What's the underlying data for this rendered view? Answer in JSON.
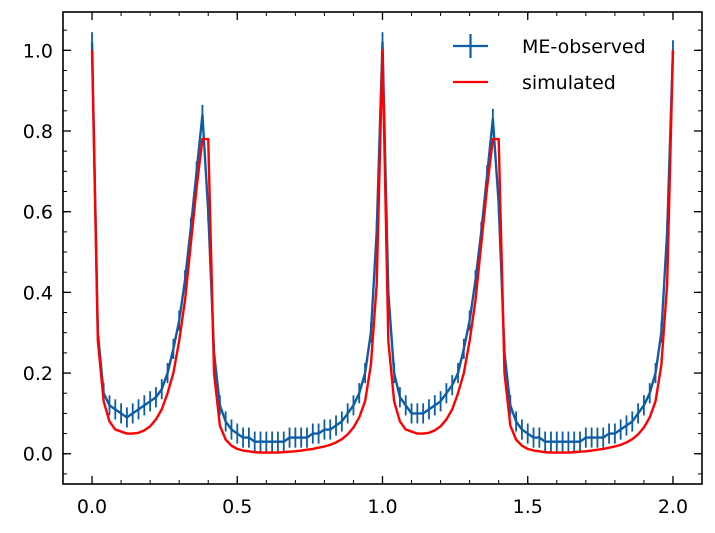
{
  "chart_data": {
    "type": "line",
    "title": "",
    "xlabel": "",
    "ylabel": "",
    "xlim": [
      -0.1,
      2.1
    ],
    "ylim": [
      -0.075,
      1.095
    ],
    "xticks": [
      0.0,
      0.5,
      1.0,
      1.5,
      2.0
    ],
    "xtick_labels": [
      "0.0",
      "0.5",
      "1.0",
      "1.5",
      "2.0"
    ],
    "yticks": [
      0.0,
      0.2,
      0.4,
      0.6,
      0.8,
      1.0
    ],
    "ytick_labels": [
      "0.0",
      "0.2",
      "0.4",
      "0.6",
      "0.8",
      "1.0"
    ],
    "grid": false,
    "legend": {
      "position": "top-right"
    },
    "series": [
      {
        "name": "ME-observed",
        "color": "#0C5DA5",
        "style": "errorbar",
        "x": [
          0.0,
          0.02,
          0.04,
          0.06,
          0.08,
          0.1,
          0.12,
          0.14,
          0.16,
          0.18,
          0.2,
          0.22,
          0.24,
          0.26,
          0.28,
          0.3,
          0.32,
          0.34,
          0.36,
          0.38,
          0.4,
          0.42,
          0.44,
          0.46,
          0.48,
          0.5,
          0.52,
          0.54,
          0.56,
          0.58,
          0.6,
          0.62,
          0.64,
          0.66,
          0.68,
          0.7,
          0.72,
          0.74,
          0.76,
          0.78,
          0.8,
          0.82,
          0.84,
          0.86,
          0.88,
          0.9,
          0.92,
          0.94,
          0.96,
          0.98,
          1.0,
          1.02,
          1.04,
          1.06,
          1.08,
          1.1,
          1.12,
          1.14,
          1.16,
          1.18,
          1.2,
          1.22,
          1.24,
          1.26,
          1.28,
          1.3,
          1.32,
          1.34,
          1.36,
          1.38,
          1.4,
          1.42,
          1.44,
          1.46,
          1.48,
          1.5,
          1.52,
          1.54,
          1.56,
          1.58,
          1.6,
          1.62,
          1.64,
          1.66,
          1.68,
          1.7,
          1.72,
          1.74,
          1.76,
          1.78,
          1.8,
          1.82,
          1.84,
          1.86,
          1.88,
          1.9,
          1.92,
          1.94,
          1.96,
          1.98,
          2.0
        ],
        "y": [
          1.02,
          0.3,
          0.15,
          0.12,
          0.11,
          0.1,
          0.09,
          0.1,
          0.11,
          0.12,
          0.13,
          0.14,
          0.16,
          0.2,
          0.26,
          0.33,
          0.43,
          0.56,
          0.7,
          0.84,
          0.6,
          0.25,
          0.12,
          0.08,
          0.06,
          0.05,
          0.04,
          0.04,
          0.03,
          0.03,
          0.03,
          0.03,
          0.03,
          0.03,
          0.04,
          0.04,
          0.04,
          0.04,
          0.05,
          0.05,
          0.06,
          0.06,
          0.07,
          0.08,
          0.1,
          0.12,
          0.15,
          0.2,
          0.3,
          0.55,
          1.02,
          0.4,
          0.2,
          0.14,
          0.12,
          0.1,
          0.1,
          0.1,
          0.11,
          0.12,
          0.13,
          0.15,
          0.17,
          0.2,
          0.26,
          0.33,
          0.43,
          0.55,
          0.69,
          0.83,
          0.62,
          0.25,
          0.12,
          0.08,
          0.06,
          0.05,
          0.04,
          0.04,
          0.03,
          0.03,
          0.03,
          0.03,
          0.03,
          0.03,
          0.03,
          0.04,
          0.04,
          0.04,
          0.04,
          0.05,
          0.05,
          0.06,
          0.07,
          0.08,
          0.1,
          0.12,
          0.15,
          0.2,
          0.3,
          0.55,
          1.0
        ]
      },
      {
        "name": "simulated",
        "color": "#FF0000",
        "style": "line",
        "x": [
          0.0,
          0.02,
          0.04,
          0.06,
          0.08,
          0.1,
          0.12,
          0.14,
          0.16,
          0.18,
          0.2,
          0.22,
          0.24,
          0.26,
          0.28,
          0.3,
          0.32,
          0.34,
          0.36,
          0.38,
          0.4,
          0.42,
          0.44,
          0.46,
          0.48,
          0.5,
          0.52,
          0.54,
          0.56,
          0.58,
          0.6,
          0.62,
          0.64,
          0.66,
          0.68,
          0.7,
          0.72,
          0.74,
          0.76,
          0.78,
          0.8,
          0.82,
          0.84,
          0.86,
          0.88,
          0.9,
          0.92,
          0.94,
          0.96,
          0.98,
          1.0,
          1.02,
          1.04,
          1.06,
          1.08,
          1.1,
          1.12,
          1.14,
          1.16,
          1.18,
          1.2,
          1.22,
          1.24,
          1.26,
          1.28,
          1.3,
          1.32,
          1.34,
          1.36,
          1.38,
          1.4,
          1.42,
          1.44,
          1.46,
          1.48,
          1.5,
          1.52,
          1.54,
          1.56,
          1.58,
          1.6,
          1.62,
          1.64,
          1.66,
          1.68,
          1.7,
          1.72,
          1.74,
          1.76,
          1.78,
          1.8,
          1.82,
          1.84,
          1.86,
          1.88,
          1.9,
          1.92,
          1.94,
          1.96,
          1.98,
          2.0
        ],
        "y": [
          1.0,
          0.28,
          0.13,
          0.08,
          0.06,
          0.055,
          0.05,
          0.05,
          0.052,
          0.058,
          0.068,
          0.085,
          0.11,
          0.15,
          0.2,
          0.28,
          0.38,
          0.52,
          0.66,
          0.78,
          0.78,
          0.2,
          0.07,
          0.035,
          0.02,
          0.012,
          0.008,
          0.006,
          0.004,
          0.003,
          0.003,
          0.003,
          0.003,
          0.004,
          0.005,
          0.006,
          0.008,
          0.01,
          0.012,
          0.015,
          0.018,
          0.022,
          0.028,
          0.036,
          0.048,
          0.065,
          0.09,
          0.13,
          0.22,
          0.42,
          1.0,
          0.28,
          0.13,
          0.08,
          0.06,
          0.055,
          0.05,
          0.05,
          0.052,
          0.058,
          0.068,
          0.085,
          0.11,
          0.15,
          0.2,
          0.28,
          0.38,
          0.52,
          0.66,
          0.78,
          0.78,
          0.2,
          0.07,
          0.035,
          0.02,
          0.012,
          0.008,
          0.006,
          0.004,
          0.003,
          0.003,
          0.003,
          0.003,
          0.004,
          0.005,
          0.006,
          0.008,
          0.01,
          0.012,
          0.015,
          0.018,
          0.022,
          0.028,
          0.036,
          0.048,
          0.065,
          0.09,
          0.13,
          0.22,
          0.42,
          1.0
        ]
      }
    ]
  }
}
